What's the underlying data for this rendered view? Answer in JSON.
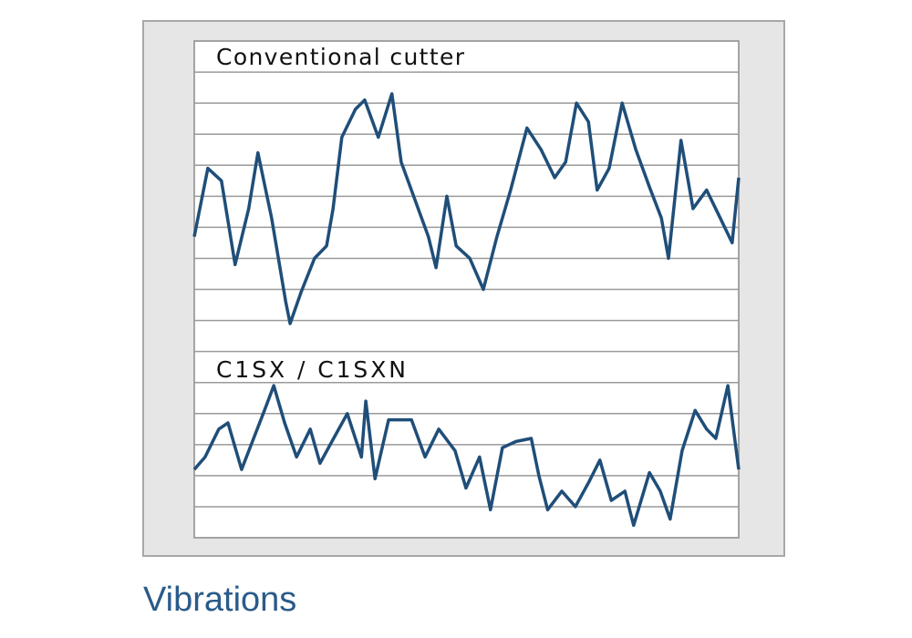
{
  "chart_data": {
    "type": "line",
    "title": "Vibrations",
    "xlim": [
      0,
      100
    ],
    "ylim": [
      0,
      16
    ],
    "ygrid": [
      0,
      1,
      2,
      3,
      4,
      5,
      6,
      7,
      8,
      9,
      10,
      11,
      12,
      13,
      14,
      15,
      16
    ],
    "series": [
      {
        "name": "Conventional cutter",
        "color": "#1f4e79",
        "x": [
          0,
          2.5,
          5,
          7.5,
          10,
          11.7,
          14.2,
          16.8,
          17.6,
          19.6,
          22.1,
          24.3,
          25.5,
          27.1,
          29.6,
          31.3,
          33.8,
          36.3,
          38,
          40.5,
          43,
          44.4,
          46.4,
          48.1,
          50.6,
          53.1,
          55.6,
          58.1,
          61.1,
          63.7,
          66.2,
          68.2,
          70.2,
          72.4,
          74,
          76.2,
          78.6,
          81.1,
          83.6,
          85.8,
          87.1,
          89.4,
          91.6,
          94.1,
          96.6,
          98.8,
          100
        ],
        "values": [
          9.7,
          11.9,
          11.5,
          8.8,
          10.6,
          12.4,
          10.3,
          7.6,
          6.9,
          7.9,
          9.0,
          9.4,
          10.6,
          12.9,
          13.8,
          14.1,
          12.9,
          14.3,
          12.1,
          10.9,
          9.7,
          8.7,
          11.0,
          9.4,
          9.0,
          8.0,
          9.7,
          11.2,
          13.2,
          12.5,
          11.6,
          12.1,
          14.0,
          13.4,
          11.2,
          11.9,
          14.0,
          12.5,
          11.3,
          10.3,
          9.0,
          12.8,
          10.6,
          11.2,
          10.3,
          9.5,
          11.6
        ]
      },
      {
        "name": "C1SX / C1SXN",
        "color": "#1f4e79",
        "x": [
          0,
          2,
          4.5,
          6.2,
          8.7,
          10.9,
          12.9,
          14.6,
          16.6,
          18.8,
          21.3,
          23.1,
          25.6,
          28.1,
          30.7,
          31.5,
          33.2,
          35.7,
          39.9,
          42.4,
          44.9,
          47.9,
          49.9,
          52.4,
          54.4,
          56.6,
          59.1,
          61.9,
          63.3,
          64.9,
          67.5,
          70,
          72.5,
          74.5,
          76.6,
          79.1,
          80.7,
          83.6,
          85.6,
          87.4,
          89.6,
          92,
          94.1,
          95.8,
          98,
          100
        ],
        "values": [
          2.2,
          2.6,
          3.5,
          3.7,
          2.2,
          3.2,
          4.1,
          4.9,
          3.7,
          2.6,
          3.5,
          2.4,
          3.2,
          4.0,
          2.6,
          4.4,
          1.9,
          3.8,
          3.8,
          2.6,
          3.5,
          2.8,
          1.6,
          2.6,
          0.9,
          2.9,
          3.1,
          3.2,
          2.0,
          0.9,
          1.5,
          1.0,
          1.8,
          2.5,
          1.2,
          1.5,
          0.4,
          2.1,
          1.5,
          0.6,
          2.8,
          4.1,
          3.5,
          3.2,
          4.9,
          2.2
        ]
      }
    ]
  }
}
